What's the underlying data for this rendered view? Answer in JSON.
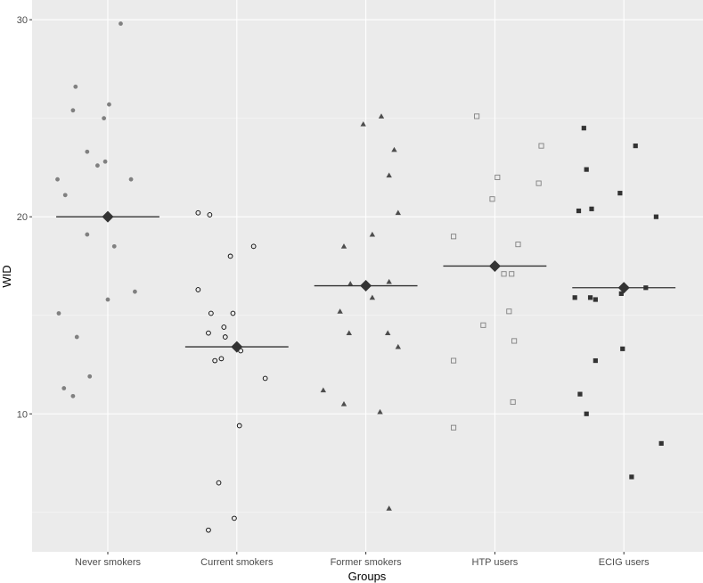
{
  "chart_data": {
    "type": "scatter",
    "title": "",
    "xlabel": "Groups",
    "ylabel": "WID",
    "ylim": [
      3.0,
      31.0
    ],
    "yticks": [
      10,
      20,
      30
    ],
    "grid": true,
    "categories": [
      "Never smokers",
      "Current smokers",
      "Former smokers",
      "HTP users",
      "ECIG users"
    ],
    "series": [
      {
        "category": "Never smokers",
        "marker": "filled-circle",
        "color": "#808080",
        "mean": 20.0,
        "points": [
          {
            "x": -0.39,
            "y": 21.9
          },
          {
            "x": -0.33,
            "y": 21.1
          },
          {
            "x": -0.38,
            "y": 15.1
          },
          {
            "x": -0.34,
            "y": 11.3
          },
          {
            "x": -0.25,
            "y": 26.6
          },
          {
            "x": -0.27,
            "y": 25.4
          },
          {
            "x": -0.24,
            "y": 13.9
          },
          {
            "x": -0.16,
            "y": 23.3
          },
          {
            "x": -0.16,
            "y": 19.1
          },
          {
            "x": -0.08,
            "y": 22.6
          },
          {
            "x": -0.03,
            "y": 25.0
          },
          {
            "x": 0.01,
            "y": 25.7
          },
          {
            "x": 0.0,
            "y": 15.8
          },
          {
            "x": -0.02,
            "y": 22.8
          },
          {
            "x": 0.05,
            "y": 18.5
          },
          {
            "x": 0.21,
            "y": 16.2
          },
          {
            "x": 0.18,
            "y": 21.9
          },
          {
            "x": 0.1,
            "y": 29.8
          },
          {
            "x": -0.14,
            "y": 11.9
          },
          {
            "x": -0.27,
            "y": 10.9
          }
        ]
      },
      {
        "category": "Current smokers",
        "marker": "open-circle",
        "color": "#000000",
        "mean": 13.4,
        "points": [
          {
            "x": -0.3,
            "y": 20.2
          },
          {
            "x": -0.21,
            "y": 20.1
          },
          {
            "x": -0.3,
            "y": 16.3
          },
          {
            "x": -0.22,
            "y": 14.1
          },
          {
            "x": -0.2,
            "y": 15.1
          },
          {
            "x": -0.17,
            "y": 12.7
          },
          {
            "x": -0.1,
            "y": 14.4
          },
          {
            "x": -0.05,
            "y": 18.0
          },
          {
            "x": -0.03,
            "y": 15.1
          },
          {
            "x": -0.09,
            "y": 13.9
          },
          {
            "x": 0.03,
            "y": 13.2
          },
          {
            "x": 0.13,
            "y": 18.5
          },
          {
            "x": 0.22,
            "y": 11.8
          },
          {
            "x": -0.12,
            "y": 12.8
          },
          {
            "x": 0.02,
            "y": 9.4
          },
          {
            "x": -0.02,
            "y": 4.7
          },
          {
            "x": -0.14,
            "y": 6.5
          },
          {
            "x": -0.22,
            "y": 4.1
          }
        ]
      },
      {
        "category": "Former smokers",
        "marker": "filled-triangle",
        "color": "#4d4d4d",
        "mean": 16.5,
        "points": [
          {
            "x": -0.02,
            "y": 24.7
          },
          {
            "x": 0.12,
            "y": 25.1
          },
          {
            "x": 0.22,
            "y": 23.4
          },
          {
            "x": 0.18,
            "y": 22.1
          },
          {
            "x": 0.25,
            "y": 20.2
          },
          {
            "x": -0.17,
            "y": 18.5
          },
          {
            "x": 0.05,
            "y": 19.1
          },
          {
            "x": -0.12,
            "y": 16.6
          },
          {
            "x": 0.05,
            "y": 15.9
          },
          {
            "x": 0.18,
            "y": 16.7
          },
          {
            "x": -0.2,
            "y": 15.2
          },
          {
            "x": -0.13,
            "y": 14.1
          },
          {
            "x": 0.17,
            "y": 14.1
          },
          {
            "x": 0.25,
            "y": 13.4
          },
          {
            "x": -0.33,
            "y": 11.2
          },
          {
            "x": -0.17,
            "y": 10.5
          },
          {
            "x": 0.11,
            "y": 10.1
          },
          {
            "x": 0.18,
            "y": 5.2
          }
        ]
      },
      {
        "category": "HTP users",
        "marker": "open-square",
        "color": "#808080",
        "mean": 17.5,
        "points": [
          {
            "x": -0.14,
            "y": 25.1
          },
          {
            "x": 0.36,
            "y": 23.6
          },
          {
            "x": 0.02,
            "y": 22.0
          },
          {
            "x": 0.34,
            "y": 21.7
          },
          {
            "x": -0.02,
            "y": 20.9
          },
          {
            "x": -0.32,
            "y": 19.0
          },
          {
            "x": 0.18,
            "y": 18.6
          },
          {
            "x": 0.07,
            "y": 17.1
          },
          {
            "x": 0.13,
            "y": 17.1
          },
          {
            "x": 0.11,
            "y": 15.2
          },
          {
            "x": -0.09,
            "y": 14.5
          },
          {
            "x": 0.15,
            "y": 13.7
          },
          {
            "x": -0.32,
            "y": 12.7
          },
          {
            "x": 0.14,
            "y": 10.6
          },
          {
            "x": -0.32,
            "y": 9.3
          }
        ]
      },
      {
        "category": "ECIG users",
        "marker": "filled-square",
        "color": "#333333",
        "mean": 16.4,
        "points": [
          {
            "x": -0.31,
            "y": 24.5
          },
          {
            "x": -0.29,
            "y": 22.4
          },
          {
            "x": 0.09,
            "y": 23.6
          },
          {
            "x": -0.03,
            "y": 21.2
          },
          {
            "x": -0.35,
            "y": 20.3
          },
          {
            "x": -0.25,
            "y": 20.4
          },
          {
            "x": 0.25,
            "y": 20.0
          },
          {
            "x": -0.38,
            "y": 15.9
          },
          {
            "x": -0.26,
            "y": 15.9
          },
          {
            "x": -0.22,
            "y": 15.8
          },
          {
            "x": 0.17,
            "y": 16.4
          },
          {
            "x": -0.02,
            "y": 16.1
          },
          {
            "x": -0.22,
            "y": 12.7
          },
          {
            "x": -0.34,
            "y": 11.0
          },
          {
            "x": -0.29,
            "y": 10.0
          },
          {
            "x": -0.01,
            "y": 13.3
          },
          {
            "x": 0.29,
            "y": 8.5
          },
          {
            "x": 0.06,
            "y": 6.8
          }
        ]
      }
    ]
  }
}
